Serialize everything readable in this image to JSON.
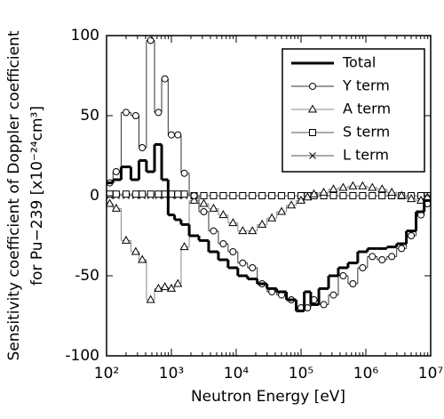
{
  "chart_data": {
    "type": "line",
    "step": "mid",
    "xlabel": "Neutron Energy [eV]",
    "ylabel": [
      "Sensitivity coefficient of Doppler coefficient",
      "for Pu−239 [x10⁻²⁴cm³]"
    ],
    "xscale": "log",
    "xlim": [
      100,
      10000000
    ],
    "xticks": [
      {
        "value": 100,
        "label": "10²"
      },
      {
        "value": 1000,
        "label": "10³"
      },
      {
        "value": 10000,
        "label": "10⁴"
      },
      {
        "value": 100000,
        "label": "10⁵"
      },
      {
        "value": 1000000,
        "label": "10⁶"
      },
      {
        "value": 10000000,
        "label": "10⁷"
      }
    ],
    "ylim": [
      -100,
      100
    ],
    "yticks": [
      -100,
      -50,
      0,
      50,
      100
    ],
    "legend": "upper right",
    "x": [
      112,
      141,
      200,
      282,
      355,
      479,
      631,
      794,
      1000,
      1259,
      1585,
      2239,
      3162,
      4467,
      6310,
      8913,
      12589,
      17783,
      25119,
      35481,
      50119,
      70795,
      100000,
      125893,
      158489,
      223872,
      316228,
      446684,
      630957,
      891251,
      1258925,
      1778279,
      2511886,
      3548134,
      5011872,
      7079458,
      8912509
    ],
    "series": [
      {
        "name": "Total",
        "color": "#000000",
        "marker": "none",
        "values": [
          8,
          10,
          18,
          10,
          22,
          15,
          32,
          10,
          -12,
          -15,
          -18,
          -25,
          -28,
          -35,
          -40,
          -45,
          -50,
          -52,
          -55,
          -58,
          -60,
          -65,
          -72,
          -60,
          -68,
          -58,
          -50,
          -45,
          -42,
          -35,
          -33,
          -33,
          -32,
          -30,
          -22,
          -10,
          -3
        ]
      },
      {
        "name": "Y term",
        "color": "#333333",
        "marker": "circle",
        "values": [
          8,
          15,
          52,
          50,
          30,
          97,
          52,
          73,
          38,
          38,
          14,
          0,
          -10,
          -22,
          -30,
          -35,
          -42,
          -45,
          -55,
          -60,
          -62,
          -65,
          -70,
          -70,
          -65,
          -68,
          -62,
          -50,
          -55,
          -45,
          -38,
          -40,
          -38,
          -33,
          -25,
          -12,
          -5
        ]
      },
      {
        "name": "A term",
        "color": "#888888",
        "marker": "triangle",
        "values": [
          -5,
          -8,
          -28,
          -35,
          -40,
          -65,
          -58,
          -57,
          -58,
          -55,
          -32,
          -3,
          -5,
          -8,
          -12,
          -17,
          -22,
          -22,
          -18,
          -14,
          -10,
          -6,
          -3,
          -1,
          1,
          2,
          4,
          5,
          6,
          6,
          5,
          4,
          2,
          0,
          -2,
          -3,
          -1
        ]
      },
      {
        "name": "S term",
        "color": "#555555",
        "marker": "square",
        "values": [
          1,
          1,
          1,
          1,
          1,
          1,
          1,
          1,
          1,
          1,
          1,
          0,
          0,
          0,
          0,
          0,
          0,
          0,
          0,
          0,
          0,
          0,
          0,
          0,
          0,
          0,
          0,
          0,
          0,
          0,
          0,
          0,
          0,
          0,
          0,
          0,
          0
        ]
      },
      {
        "name": "L term",
        "color": "#555555",
        "marker": "cross",
        "values": [
          0,
          0,
          0,
          0,
          0,
          0,
          0,
          0,
          0,
          0,
          0,
          0,
          0,
          0,
          0,
          0,
          0,
          0,
          0,
          0,
          0,
          0,
          0,
          0,
          0,
          0,
          0,
          0,
          0,
          0,
          0,
          0,
          0,
          0,
          0,
          0,
          0
        ]
      }
    ]
  }
}
